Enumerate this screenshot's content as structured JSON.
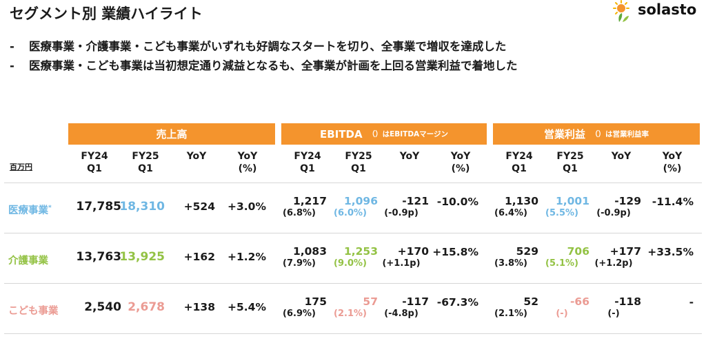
{
  "title": "セグメント別 業績ハイライト",
  "logo": {
    "text": "solasto",
    "icon": "sun-leaf-icon"
  },
  "bullets": [
    {
      "dash": "-",
      "text": "医療事業・介護事業・こども事業がいずれも好調なスタートを切り、全事業で増収を達成した"
    },
    {
      "dash": "-",
      "text": "医療事業・こども事業は当初想定通り減益となるも、全事業が計画を上回る営業利益で着地した"
    }
  ],
  "unit": "百万円",
  "groups": [
    {
      "title": "売上高",
      "note": ""
    },
    {
      "title": "EBITDA",
      "note": "（）はEBITDAマージン"
    },
    {
      "title": "営業利益",
      "note": "（）は営業利益率"
    }
  ],
  "columns": {
    "fy24": [
      "FY24",
      "Q1"
    ],
    "fy25": [
      "FY25",
      "Q1"
    ],
    "yoy": [
      "YoY",
      ""
    ],
    "yoy_pct": [
      "YoY",
      "(%)"
    ]
  },
  "rows": [
    {
      "label": "医療事業",
      "mark": "*",
      "color": "#6fb7e3",
      "sales": {
        "fy24": "17,785",
        "fy25": "18,310",
        "yoy": "+524",
        "pct": "+3.0%"
      },
      "ebitda": {
        "fy24": "1,217",
        "fy24_sub": "(6.8%)",
        "fy25": "1,096",
        "fy25_sub": "(6.0%)",
        "yoy": "-121",
        "yoy_sub": "(-0.9p)",
        "pct": "-10.0%"
      },
      "op": {
        "fy24": "1,130",
        "fy24_sub": "(6.4%)",
        "fy25": "1,001",
        "fy25_sub": "(5.5%)",
        "yoy": "-129",
        "yoy_sub": "(-0.9p)",
        "pct": "-11.4%"
      }
    },
    {
      "label": "介護事業",
      "mark": "",
      "color": "#93c244",
      "sales": {
        "fy24": "13,763",
        "fy25": "13,925",
        "yoy": "+162",
        "pct": "+1.2%"
      },
      "ebitda": {
        "fy24": "1,083",
        "fy24_sub": "(7.9%)",
        "fy25": "1,253",
        "fy25_sub": "(9.0%)",
        "yoy": "+170",
        "yoy_sub": "(+1.1p)",
        "pct": "+15.8%"
      },
      "op": {
        "fy24": "529",
        "fy24_sub": "(3.8%)",
        "fy25": "706",
        "fy25_sub": "(5.1%)",
        "yoy": "+177",
        "yoy_sub": "(+1.2p)",
        "pct": "+33.5%"
      }
    },
    {
      "label": "こども事業",
      "mark": "",
      "color": "#eb9b93",
      "sales": {
        "fy24": "2,540",
        "fy25": "2,678",
        "yoy": "+138",
        "pct": "+5.4%"
      },
      "ebitda": {
        "fy24": "175",
        "fy24_sub": "(6.9%)",
        "fy25": "57",
        "fy25_sub": "(2.1%)",
        "yoy": "-117",
        "yoy_sub": "(-4.8p)",
        "pct": "-67.3%"
      },
      "op": {
        "fy24": "52",
        "fy24_sub": "(2.1%)",
        "fy25": "-66",
        "fy25_sub": "(-)",
        "yoy": "-118",
        "yoy_sub": "(-)",
        "pct": "-"
      }
    }
  ]
}
